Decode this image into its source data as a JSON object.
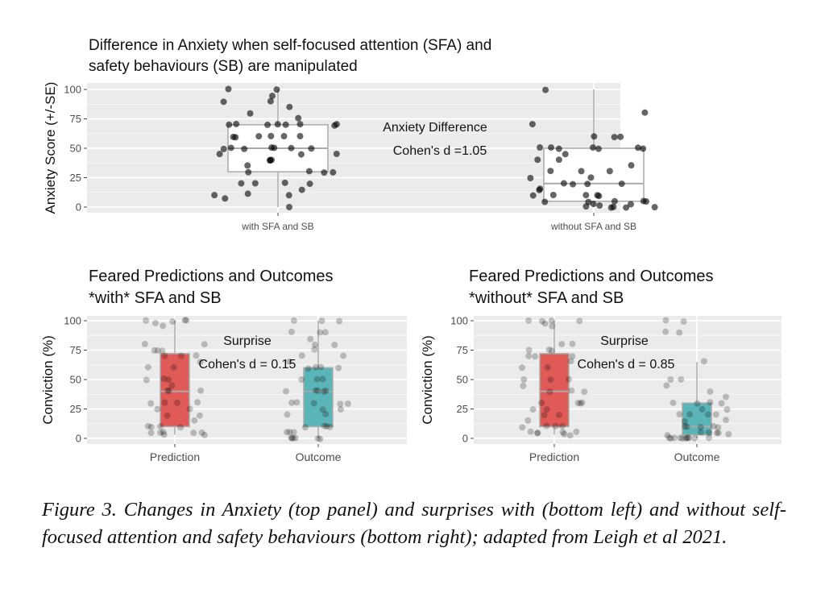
{
  "chart_data": [
    {
      "type": "box",
      "title": [
        "Difference in Anxiety when self-focused attention (SFA) and",
        "safety behaviours (SB) are manipulated"
      ],
      "ylabel": "Anxiety Score (+/-SE)",
      "ylim": [
        0,
        100
      ],
      "yticks": [
        0,
        25,
        50,
        75,
        100
      ],
      "categories": [
        "with SFA and SB",
        "without SFA and SB"
      ],
      "annotations": [
        "Anxiety Difference",
        "Cohen's d =1.05"
      ],
      "groups": [
        {
          "name": "with SFA and SB",
          "fill": "#ffffff",
          "stats": {
            "min": 0,
            "q1": 30,
            "median": 50,
            "q3": 70,
            "max": 100
          },
          "points": [
            100,
            100,
            90,
            90,
            85,
            80,
            75,
            70,
            70,
            70,
            70,
            70,
            70,
            70,
            70,
            60,
            60,
            60,
            60,
            60,
            60,
            50,
            50,
            50,
            50,
            50,
            50,
            50,
            45,
            45,
            45,
            40,
            40,
            40,
            35,
            30,
            30,
            30,
            30,
            20,
            20,
            20,
            20,
            15,
            12,
            10,
            10,
            8,
            95,
            0
          ]
        },
        {
          "name": "without SFA and SB",
          "fill": "#ffffff",
          "stats": {
            "min": 0,
            "q1": 5,
            "median": 20,
            "q3": 50,
            "max": 100
          },
          "points": [
            100,
            80,
            70,
            60,
            60,
            50,
            50,
            50,
            50,
            50,
            50,
            45,
            40,
            40,
            35,
            30,
            30,
            30,
            25,
            25,
            20,
            20,
            20,
            20,
            15,
            15,
            10,
            10,
            10,
            10,
            10,
            5,
            5,
            5,
            5,
            5,
            3,
            3,
            2,
            0,
            0,
            0,
            0,
            0,
            60,
            50
          ]
        }
      ]
    },
    {
      "type": "box",
      "title": [
        "Feared Predictions and Outcomes",
        "*with* SFA and SB"
      ],
      "ylabel": "Conviction (%)",
      "ylim": [
        0,
        100
      ],
      "yticks": [
        0,
        25,
        50,
        75,
        100
      ],
      "categories": [
        "Prediction",
        "Outcome"
      ],
      "annotations": [
        "Surprise",
        "Cohen's d = 0.15"
      ],
      "groups": [
        {
          "name": "Prediction",
          "fill": "#e05a57",
          "stats": {
            "min": 3,
            "q1": 10,
            "median": 40,
            "q3": 72,
            "max": 100
          },
          "points": [
            100,
            100,
            100,
            100,
            98,
            95,
            80,
            80,
            75,
            75,
            75,
            70,
            70,
            70,
            65,
            60,
            60,
            50,
            50,
            50,
            45,
            40,
            40,
            40,
            30,
            30,
            30,
            30,
            25,
            25,
            20,
            20,
            15,
            10,
            10,
            10,
            10,
            5,
            5,
            5,
            5,
            5,
            3,
            3
          ]
        },
        {
          "name": "Outcome",
          "fill": "#5bb5b8",
          "stats": {
            "min": 0,
            "q1": 10,
            "median": 40,
            "q3": 60,
            "max": 100
          },
          "points": [
            100,
            100,
            100,
            90,
            90,
            90,
            85,
            80,
            80,
            75,
            70,
            70,
            65,
            60,
            60,
            60,
            60,
            50,
            50,
            50,
            40,
            40,
            40,
            40,
            40,
            30,
            30,
            30,
            30,
            30,
            25,
            25,
            20,
            20,
            10,
            10,
            10,
            10,
            5,
            5,
            5,
            0,
            0,
            0,
            0,
            0,
            0
          ]
        }
      ]
    },
    {
      "type": "box",
      "title": [
        "Feared Predictions and Outcomes",
        "*without* SFA and SB"
      ],
      "ylabel": "Conviction (%)",
      "ylim": [
        0,
        100
      ],
      "yticks": [
        0,
        25,
        50,
        75,
        100
      ],
      "categories": [
        "Prediction",
        "Outcome"
      ],
      "annotations": [
        "Surprise",
        "Cohen's d = 0.85"
      ],
      "groups": [
        {
          "name": "Prediction",
          "fill": "#e05a57",
          "stats": {
            "min": 3,
            "q1": 10,
            "median": 40,
            "q3": 72,
            "max": 100
          },
          "points": [
            100,
            100,
            100,
            100,
            98,
            95,
            80,
            80,
            75,
            75,
            75,
            70,
            70,
            70,
            65,
            60,
            60,
            50,
            50,
            50,
            45,
            40,
            40,
            40,
            30,
            30,
            30,
            30,
            25,
            25,
            20,
            20,
            15,
            10,
            10,
            10,
            10,
            5,
            5,
            5,
            5,
            5,
            3,
            3
          ]
        },
        {
          "name": "Outcome",
          "fill": "#5bb5b8",
          "stats": {
            "min": 0,
            "q1": 3,
            "median": 10,
            "q3": 30,
            "max": 65
          },
          "points": [
            100,
            100,
            90,
            90,
            65,
            50,
            50,
            45,
            40,
            35,
            30,
            30,
            30,
            30,
            25,
            25,
            20,
            20,
            20,
            20,
            15,
            15,
            10,
            10,
            10,
            10,
            10,
            5,
            5,
            5,
            5,
            3,
            3,
            0,
            0,
            0,
            0,
            0,
            0,
            0,
            0,
            0,
            0,
            0
          ]
        }
      ]
    }
  ],
  "caption": "Figure 3. Changes in Anxiety (top panel) and surprises with (bottom left) and without self-focused attention and safety behaviours (bottom right); adapted from Leigh et al 2021."
}
